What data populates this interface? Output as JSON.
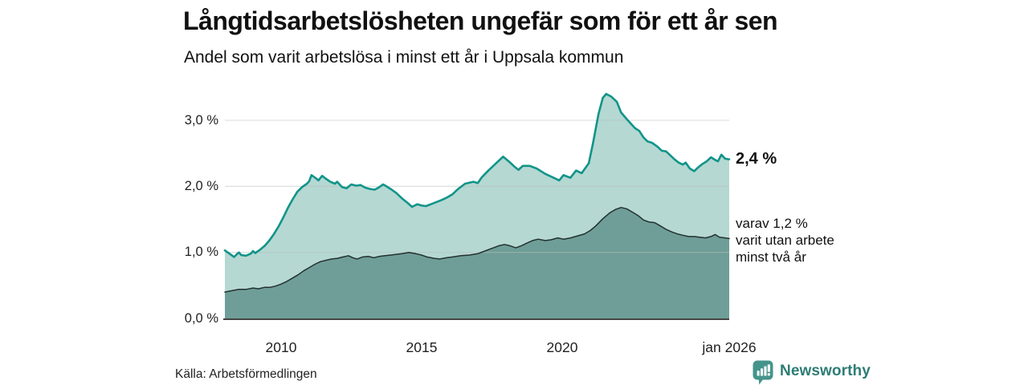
{
  "title": "Långtidsarbetslösheten ungefär som för ett år sen",
  "subtitle": "Andel som varit arbetslösa i minst ett år i Uppsala kommun",
  "source": "Källa: Arbetsförmedlingen",
  "branding": {
    "name": "Newsworthy",
    "icon": "bar-chart-speech-bubble",
    "text_color": "#2E7C75",
    "icon_bg_color": "#44948B"
  },
  "annotations": {
    "latest_total": "2,4 %",
    "breakdown": {
      "lines": [
        "varav 1,2 %",
        "varit utan arbete",
        "minst två år"
      ]
    }
  },
  "chart_data": {
    "type": "area",
    "title": "Långtidsarbetslösheten ungefär som för ett år sen",
    "subtitle": "Andel som varit arbetslösa i minst ett år i Uppsala kommun",
    "xlabel": "",
    "ylabel": "",
    "x_domain": [
      2008.0,
      2025.95
    ],
    "ylim": [
      0,
      3.5
    ],
    "grid": "horizontal",
    "gridline_color": "#b9bdbc",
    "axis_line_color": "#2a2a2a",
    "x_ticks": [
      {
        "label": "2010",
        "x": 2010
      },
      {
        "label": "2015",
        "x": 2015
      },
      {
        "label": "2020",
        "x": 2020
      },
      {
        "label": "jan 2026",
        "x": 2025.95
      }
    ],
    "y_ticks": [
      {
        "label": "0,0 %",
        "value": 0
      },
      {
        "label": "1,0 %",
        "value": 1
      },
      {
        "label": "2,0 %",
        "value": 2
      },
      {
        "label": "3,0 %",
        "value": 3
      }
    ],
    "series": [
      {
        "name": "Andel arbetslösa minst ett år",
        "latest_label": "2,4 %",
        "line_color": "#11948A",
        "fill_color": "#B5D8D2",
        "line_width": 2.6,
        "points": [
          [
            2008.0,
            1.03
          ],
          [
            2008.17,
            0.98
          ],
          [
            2008.33,
            0.93
          ],
          [
            2008.42,
            0.97
          ],
          [
            2008.5,
            1.0
          ],
          [
            2008.58,
            0.96
          ],
          [
            2008.75,
            0.95
          ],
          [
            2008.92,
            0.98
          ],
          [
            2009.0,
            1.02
          ],
          [
            2009.08,
            0.99
          ],
          [
            2009.25,
            1.04
          ],
          [
            2009.42,
            1.1
          ],
          [
            2009.58,
            1.18
          ],
          [
            2009.75,
            1.28
          ],
          [
            2009.92,
            1.4
          ],
          [
            2010.08,
            1.53
          ],
          [
            2010.25,
            1.68
          ],
          [
            2010.42,
            1.81
          ],
          [
            2010.58,
            1.92
          ],
          [
            2010.75,
            1.99
          ],
          [
            2010.92,
            2.04
          ],
          [
            2011.0,
            2.08
          ],
          [
            2011.08,
            2.17
          ],
          [
            2011.25,
            2.12
          ],
          [
            2011.33,
            2.09
          ],
          [
            2011.46,
            2.16
          ],
          [
            2011.58,
            2.12
          ],
          [
            2011.75,
            2.07
          ],
          [
            2011.92,
            2.04
          ],
          [
            2012.0,
            2.07
          ],
          [
            2012.17,
            1.99
          ],
          [
            2012.33,
            1.97
          ],
          [
            2012.5,
            2.03
          ],
          [
            2012.67,
            2.01
          ],
          [
            2012.83,
            2.02
          ],
          [
            2013.0,
            1.98
          ],
          [
            2013.17,
            1.96
          ],
          [
            2013.33,
            1.95
          ],
          [
            2013.5,
            1.99
          ],
          [
            2013.63,
            2.03
          ],
          [
            2013.75,
            2.0
          ],
          [
            2013.9,
            1.96
          ],
          [
            2014.1,
            1.9
          ],
          [
            2014.3,
            1.82
          ],
          [
            2014.5,
            1.75
          ],
          [
            2014.66,
            1.69
          ],
          [
            2014.85,
            1.73
          ],
          [
            2015.0,
            1.71
          ],
          [
            2015.15,
            1.7
          ],
          [
            2015.4,
            1.74
          ],
          [
            2015.7,
            1.79
          ],
          [
            2015.9,
            1.83
          ],
          [
            2016.1,
            1.88
          ],
          [
            2016.3,
            1.96
          ],
          [
            2016.55,
            2.04
          ],
          [
            2016.85,
            2.07
          ],
          [
            2017.0,
            2.05
          ],
          [
            2017.15,
            2.14
          ],
          [
            2017.4,
            2.25
          ],
          [
            2017.7,
            2.37
          ],
          [
            2017.9,
            2.45
          ],
          [
            2018.1,
            2.38
          ],
          [
            2018.3,
            2.3
          ],
          [
            2018.45,
            2.25
          ],
          [
            2018.6,
            2.31
          ],
          [
            2018.85,
            2.31
          ],
          [
            2019.1,
            2.27
          ],
          [
            2019.4,
            2.19
          ],
          [
            2019.7,
            2.13
          ],
          [
            2019.9,
            2.09
          ],
          [
            2020.05,
            2.17
          ],
          [
            2020.3,
            2.13
          ],
          [
            2020.5,
            2.24
          ],
          [
            2020.7,
            2.2
          ],
          [
            2020.95,
            2.35
          ],
          [
            2021.1,
            2.65
          ],
          [
            2021.3,
            3.1
          ],
          [
            2021.45,
            3.34
          ],
          [
            2021.57,
            3.4
          ],
          [
            2021.75,
            3.36
          ],
          [
            2021.95,
            3.28
          ],
          [
            2022.1,
            3.12
          ],
          [
            2022.3,
            3.02
          ],
          [
            2022.45,
            2.95
          ],
          [
            2022.6,
            2.88
          ],
          [
            2022.75,
            2.84
          ],
          [
            2022.9,
            2.74
          ],
          [
            2023.05,
            2.68
          ],
          [
            2023.2,
            2.66
          ],
          [
            2023.4,
            2.6
          ],
          [
            2023.55,
            2.54
          ],
          [
            2023.7,
            2.53
          ],
          [
            2023.85,
            2.47
          ],
          [
            2024.0,
            2.41
          ],
          [
            2024.15,
            2.36
          ],
          [
            2024.3,
            2.33
          ],
          [
            2024.4,
            2.36
          ],
          [
            2024.55,
            2.27
          ],
          [
            2024.7,
            2.23
          ],
          [
            2024.85,
            2.29
          ],
          [
            2025.0,
            2.34
          ],
          [
            2025.15,
            2.38
          ],
          [
            2025.3,
            2.44
          ],
          [
            2025.45,
            2.4
          ],
          [
            2025.55,
            2.38
          ],
          [
            2025.67,
            2.48
          ],
          [
            2025.8,
            2.42
          ],
          [
            2025.95,
            2.41
          ]
        ]
      },
      {
        "name": "varav utan arbete minst två år",
        "latest_label": "1,2 %",
        "line_color": "#233130",
        "fill_color": "#6F9E98",
        "line_width": 1.5,
        "points": [
          [
            2008.0,
            0.4
          ],
          [
            2008.25,
            0.42
          ],
          [
            2008.5,
            0.44
          ],
          [
            2008.75,
            0.44
          ],
          [
            2009.0,
            0.46
          ],
          [
            2009.2,
            0.45
          ],
          [
            2009.4,
            0.47
          ],
          [
            2009.6,
            0.47
          ],
          [
            2009.8,
            0.49
          ],
          [
            2010.0,
            0.52
          ],
          [
            2010.2,
            0.56
          ],
          [
            2010.4,
            0.61
          ],
          [
            2010.6,
            0.66
          ],
          [
            2010.8,
            0.72
          ],
          [
            2011.0,
            0.77
          ],
          [
            2011.2,
            0.82
          ],
          [
            2011.4,
            0.86
          ],
          [
            2011.6,
            0.88
          ],
          [
            2011.8,
            0.9
          ],
          [
            2012.0,
            0.91
          ],
          [
            2012.2,
            0.93
          ],
          [
            2012.4,
            0.95
          ],
          [
            2012.55,
            0.92
          ],
          [
            2012.7,
            0.9
          ],
          [
            2012.9,
            0.93
          ],
          [
            2013.1,
            0.94
          ],
          [
            2013.3,
            0.92
          ],
          [
            2013.5,
            0.94
          ],
          [
            2013.7,
            0.95
          ],
          [
            2013.9,
            0.96
          ],
          [
            2014.1,
            0.97
          ],
          [
            2014.3,
            0.98
          ],
          [
            2014.55,
            1.0
          ],
          [
            2014.8,
            0.98
          ],
          [
            2015.0,
            0.96
          ],
          [
            2015.2,
            0.93
          ],
          [
            2015.45,
            0.91
          ],
          [
            2015.65,
            0.9
          ],
          [
            2015.9,
            0.92
          ],
          [
            2016.1,
            0.93
          ],
          [
            2016.4,
            0.95
          ],
          [
            2016.7,
            0.96
          ],
          [
            2017.0,
            0.98
          ],
          [
            2017.25,
            1.02
          ],
          [
            2017.5,
            1.06
          ],
          [
            2017.75,
            1.1
          ],
          [
            2017.95,
            1.12
          ],
          [
            2018.15,
            1.1
          ],
          [
            2018.35,
            1.07
          ],
          [
            2018.55,
            1.1
          ],
          [
            2018.75,
            1.14
          ],
          [
            2018.95,
            1.18
          ],
          [
            2019.15,
            1.2
          ],
          [
            2019.4,
            1.18
          ],
          [
            2019.6,
            1.19
          ],
          [
            2019.85,
            1.22
          ],
          [
            2020.05,
            1.2
          ],
          [
            2020.3,
            1.22
          ],
          [
            2020.55,
            1.25
          ],
          [
            2020.8,
            1.28
          ],
          [
            2021.0,
            1.33
          ],
          [
            2021.2,
            1.4
          ],
          [
            2021.45,
            1.51
          ],
          [
            2021.7,
            1.6
          ],
          [
            2021.9,
            1.65
          ],
          [
            2022.1,
            1.68
          ],
          [
            2022.3,
            1.66
          ],
          [
            2022.5,
            1.61
          ],
          [
            2022.7,
            1.56
          ],
          [
            2022.9,
            1.49
          ],
          [
            2023.1,
            1.46
          ],
          [
            2023.3,
            1.45
          ],
          [
            2023.5,
            1.4
          ],
          [
            2023.7,
            1.35
          ],
          [
            2023.9,
            1.31
          ],
          [
            2024.1,
            1.28
          ],
          [
            2024.3,
            1.26
          ],
          [
            2024.5,
            1.24
          ],
          [
            2024.7,
            1.24
          ],
          [
            2024.9,
            1.23
          ],
          [
            2025.1,
            1.22
          ],
          [
            2025.3,
            1.24
          ],
          [
            2025.45,
            1.27
          ],
          [
            2025.6,
            1.23
          ],
          [
            2025.8,
            1.22
          ],
          [
            2025.95,
            1.21
          ]
        ]
      }
    ]
  }
}
